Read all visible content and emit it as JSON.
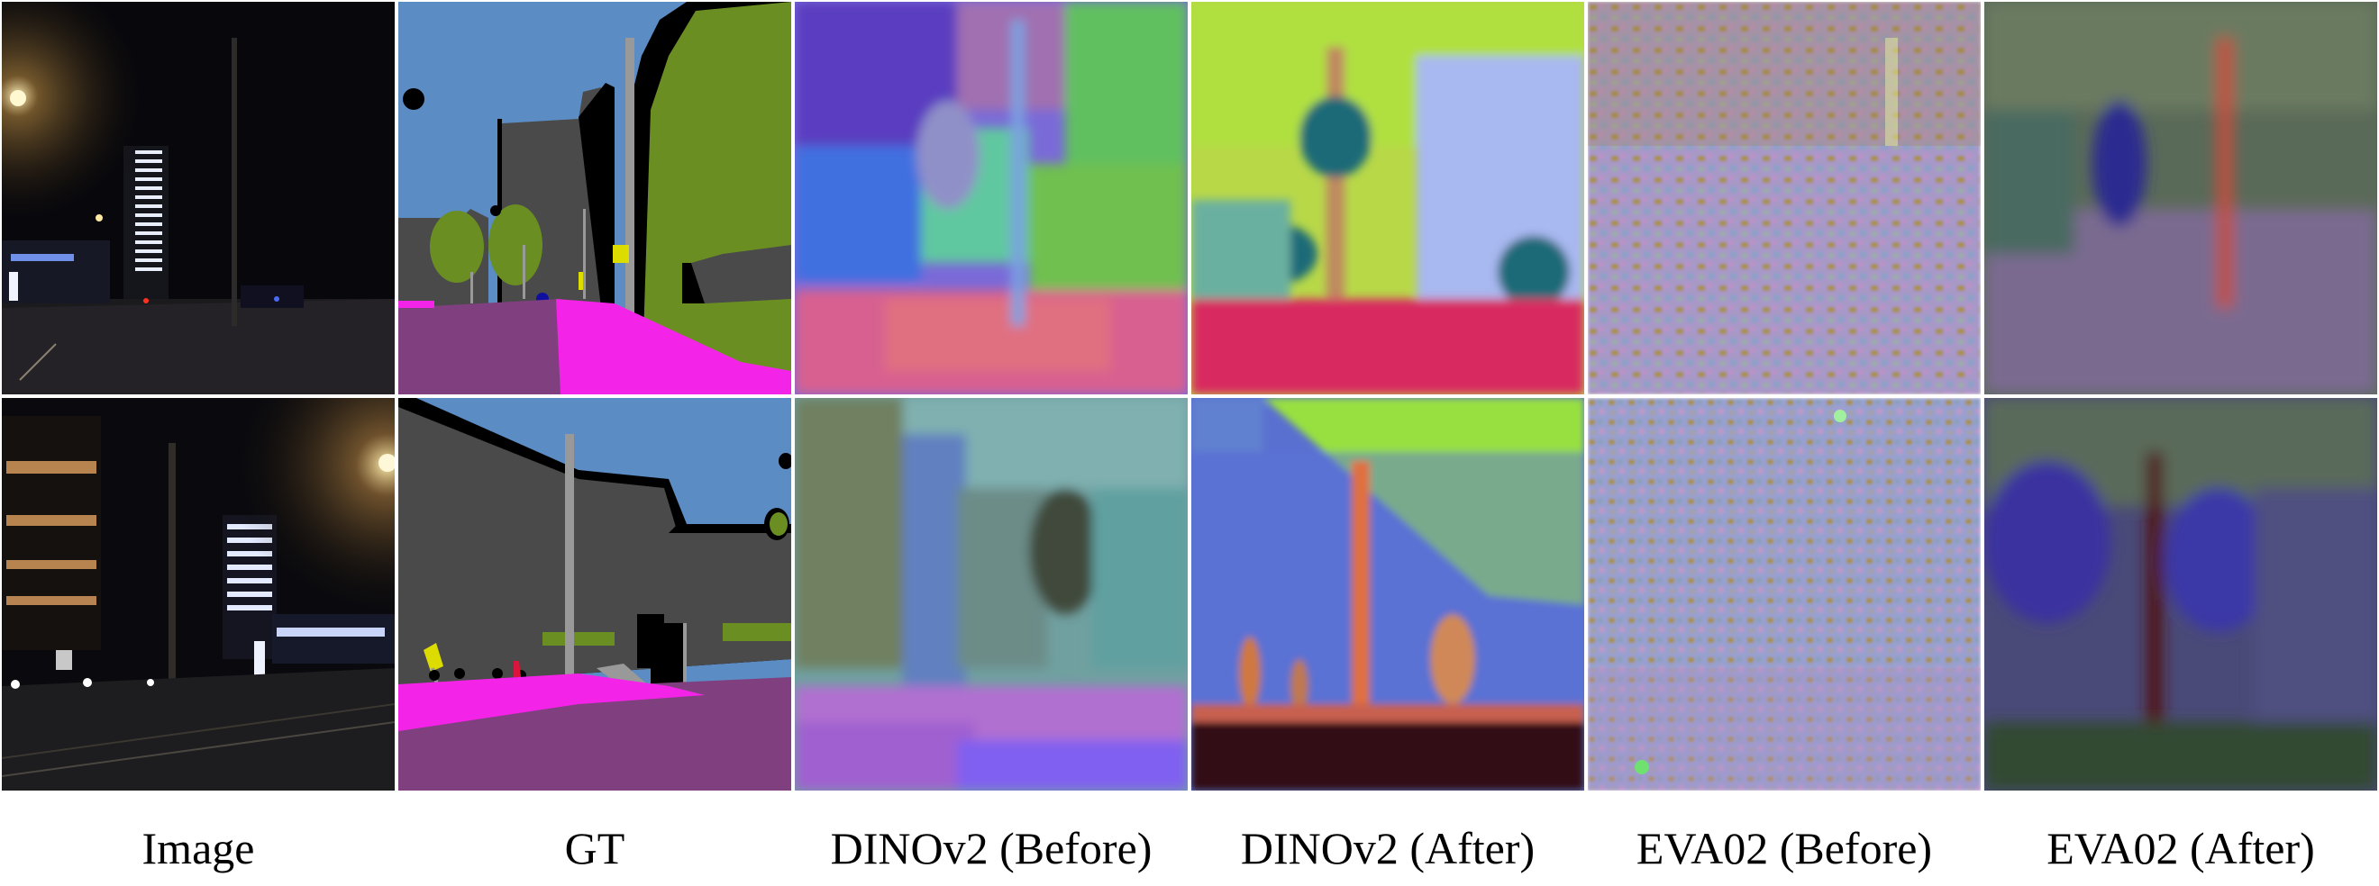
{
  "figure": {
    "captions": [
      "Image",
      "GT",
      "DINOv2 (Before)",
      "DINOv2 (After)",
      "EVA02 (Before)",
      "EVA02 (After)"
    ],
    "rows": [
      {
        "scene": "night street with tall lit tower, street lamp and pole"
      },
      {
        "scene": "night street with office buildings, street lamp and sidewalk"
      }
    ],
    "colors": {
      "sky": "#5b8cc4",
      "building": "#4a4a4a",
      "vegetation": "#6b8e23",
      "road": "#804080",
      "sidewalk": "#f423e8",
      "pole": "#999999",
      "traffic_sign": "#dcdc00",
      "void": "#000000"
    }
  }
}
